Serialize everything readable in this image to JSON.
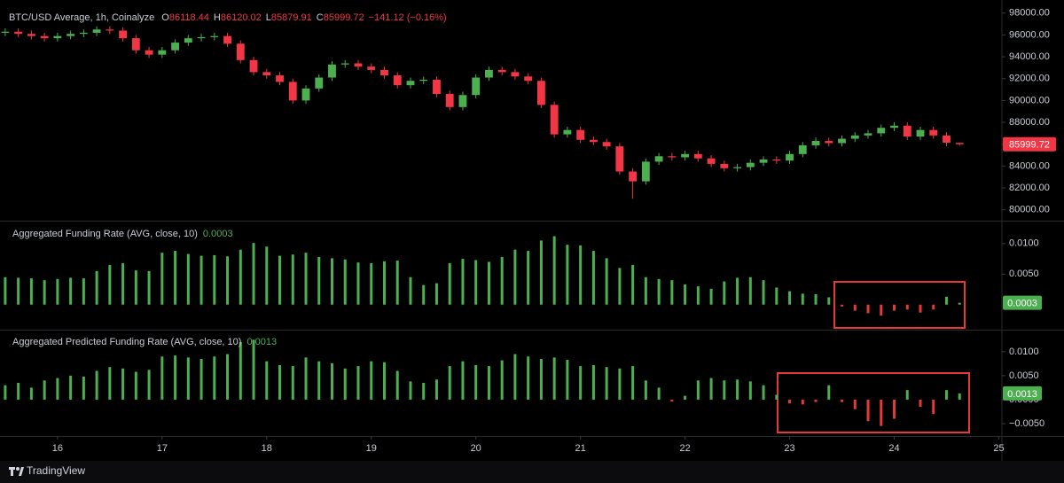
{
  "chart_data": [
    {
      "type": "candlestick",
      "title": "BTC/USD Average, 1h, Coinalyze",
      "ohlc_labels": [
        "O",
        "H",
        "L",
        "C"
      ],
      "change_label": "−141.12 (−0.16%)",
      "up_color": "#4caf50",
      "down_color": "#f23645",
      "grid": false,
      "xlim": [
        15.45,
        25.03
      ],
      "xticks": [
        16,
        17,
        18,
        19,
        20,
        21,
        22,
        23,
        24,
        25
      ],
      "x": [
        15.5,
        15.625,
        15.75,
        15.875,
        16,
        16.125,
        16.25,
        16.375,
        16.5,
        16.625,
        16.75,
        16.875,
        17,
        17.125,
        17.25,
        17.375,
        17.5,
        17.625,
        17.75,
        17.875,
        18,
        18.125,
        18.25,
        18.375,
        18.5,
        18.625,
        18.75,
        18.875,
        19,
        19.125,
        19.25,
        19.375,
        19.5,
        19.625,
        19.75,
        19.875,
        20,
        20.125,
        20.25,
        20.375,
        20.5,
        20.625,
        20.75,
        20.875,
        21,
        21.125,
        21.25,
        21.375,
        21.5,
        21.625,
        21.75,
        21.875,
        22,
        22.125,
        22.25,
        22.375,
        22.5,
        22.625,
        22.75,
        22.875,
        23,
        23.125,
        23.25,
        23.375,
        23.5,
        23.625,
        23.75,
        23.875,
        24,
        24.125,
        24.25,
        24.375,
        24.5,
        24.625
      ],
      "open": [
        96200,
        96300,
        96100,
        95900,
        95700,
        95900,
        96100,
        96200,
        96500,
        96400,
        95700,
        94600,
        94200,
        94600,
        95300,
        95700,
        95800,
        95900,
        95200,
        93700,
        92600,
        92300,
        91700,
        90000,
        91100,
        92100,
        93300,
        93400,
        93100,
        92800,
        92300,
        91400,
        91800,
        91900,
        90600,
        89400,
        90500,
        92100,
        92800,
        92600,
        92200,
        91800,
        89600,
        86900,
        87300,
        86400,
        86200,
        85800,
        83500,
        82600,
        84400,
        84900,
        84800,
        85100,
        84700,
        84200,
        83800,
        83900,
        84300,
        84600,
        84500,
        85100,
        85900,
        86300,
        86100,
        86500,
        86800,
        87000,
        87500,
        87700,
        86700,
        87300,
        86800,
        86118.44
      ],
      "high": [
        96600,
        96600,
        96400,
        96200,
        96200,
        96400,
        96500,
        96800,
        96800,
        96700,
        96000,
        94900,
        94900,
        95600,
        96000,
        96100,
        96200,
        96200,
        95500,
        94000,
        92900,
        92600,
        92000,
        91400,
        92400,
        93600,
        93700,
        93700,
        93400,
        93100,
        92600,
        92100,
        92200,
        92200,
        90900,
        90800,
        92400,
        93100,
        93100,
        92900,
        92500,
        92100,
        89900,
        87600,
        87600,
        86700,
        86500,
        86100,
        83800,
        84700,
        85200,
        85200,
        85400,
        85400,
        85000,
        84500,
        84200,
        84600,
        84900,
        84900,
        85400,
        86200,
        86600,
        86600,
        86800,
        87100,
        87300,
        87800,
        88000,
        88000,
        87600,
        87600,
        87100,
        86120.02
      ],
      "low": [
        95900,
        95800,
        95600,
        95400,
        95400,
        95600,
        95800,
        95900,
        96100,
        95400,
        94300,
        93900,
        93900,
        94300,
        95000,
        95400,
        95500,
        94900,
        93400,
        92300,
        92000,
        91400,
        89700,
        89700,
        90800,
        91800,
        93000,
        92800,
        92500,
        92000,
        91100,
        91100,
        91500,
        90300,
        89100,
        89100,
        90200,
        91800,
        92300,
        91900,
        91500,
        89300,
        86600,
        86600,
        86100,
        85900,
        85500,
        83200,
        81000,
        82300,
        84100,
        84500,
        84500,
        84400,
        83900,
        83500,
        83500,
        83600,
        84000,
        84200,
        84200,
        84800,
        85600,
        85800,
        85800,
        86200,
        86500,
        86700,
        87200,
        86400,
        86400,
        86500,
        85800,
        85879.91
      ],
      "close": [
        96300,
        96100,
        95900,
        95700,
        95900,
        96100,
        96200,
        96500,
        96400,
        95700,
        94600,
        94200,
        94600,
        95300,
        95700,
        95800,
        95900,
        95200,
        93700,
        92600,
        92300,
        91700,
        90000,
        91100,
        92100,
        93300,
        93400,
        93100,
        92800,
        92300,
        91400,
        91800,
        91900,
        90600,
        89400,
        90500,
        92100,
        92800,
        92600,
        92200,
        91800,
        89600,
        86900,
        87300,
        86400,
        86200,
        85800,
        83500,
        82600,
        84400,
        84900,
        84800,
        85100,
        84700,
        84200,
        83800,
        83900,
        84300,
        84600,
        84500,
        85100,
        85900,
        86300,
        86100,
        86500,
        86800,
        87000,
        87500,
        87700,
        86700,
        87300,
        86800,
        86140.84,
        85999.72
      ],
      "ylim": [
        79000,
        99200
      ],
      "yticks": [
        {
          "value": 80000,
          "label": "80000.00"
        },
        {
          "value": 82000,
          "label": "82000.00"
        },
        {
          "value": 84000,
          "label": "84000.00"
        },
        {
          "value": 86000,
          "label": "86000.00"
        },
        {
          "value": 88000,
          "label": "88000.00"
        },
        {
          "value": 90000,
          "label": "90000.00"
        },
        {
          "value": 92000,
          "label": "92000.00"
        },
        {
          "value": 94000,
          "label": "94000.00"
        },
        {
          "value": 96000,
          "label": "96000.00"
        },
        {
          "value": 98000,
          "label": "98000.00"
        }
      ]
    },
    {
      "type": "bar",
      "title": "Aggregated Funding Rate (AVG, close, 10)",
      "positive_color": "#4caf50",
      "negative_color": "#e53935",
      "grid": false,
      "values": [
        0.0045,
        0.0044,
        0.0043,
        0.004,
        0.0042,
        0.0044,
        0.0043,
        0.0055,
        0.0065,
        0.0068,
        0.0056,
        0.0055,
        0.0085,
        0.0088,
        0.0083,
        0.008,
        0.0081,
        0.0079,
        0.009,
        0.0101,
        0.0095,
        0.008,
        0.0082,
        0.0085,
        0.0078,
        0.0076,
        0.0074,
        0.0069,
        0.0068,
        0.0071,
        0.0072,
        0.0045,
        0.0032,
        0.0035,
        0.0068,
        0.0075,
        0.0073,
        0.007,
        0.0078,
        0.009,
        0.0088,
        0.0105,
        0.0112,
        0.0098,
        0.0097,
        0.0088,
        0.0076,
        0.006,
        0.0065,
        0.0045,
        0.0042,
        0.004,
        0.0033,
        0.003,
        0.0026,
        0.0038,
        0.0044,
        0.0045,
        0.004,
        0.0028,
        0.0022,
        0.0018,
        0.0017,
        0.0012,
        -0.0003,
        -0.001,
        -0.0014,
        -0.0018,
        -0.001,
        -0.0008,
        -0.0013,
        -0.0008,
        0.0013,
        0.0003
      ],
      "ylim": [
        -0.0041,
        0.0136
      ],
      "yticks": [
        {
          "value": 0.005,
          "label": "0.0050"
        },
        {
          "value": 0.01,
          "label": "0.0100"
        }
      ]
    },
    {
      "type": "bar",
      "title": "Aggregated Predicted Funding Rate (AVG, close, 10)",
      "positive_color": "#4caf50",
      "negative_color": "#e53935",
      "grid": false,
      "values": [
        0.003,
        0.0035,
        0.0025,
        0.004,
        0.0045,
        0.005,
        0.0048,
        0.006,
        0.0068,
        0.0065,
        0.0058,
        0.0062,
        0.009,
        0.0092,
        0.0088,
        0.0085,
        0.009,
        0.0095,
        0.012,
        0.0125,
        0.008,
        0.0072,
        0.007,
        0.0088,
        0.008,
        0.0076,
        0.0065,
        0.007,
        0.008,
        0.0078,
        0.006,
        0.0038,
        0.0035,
        0.0042,
        0.007,
        0.008,
        0.0072,
        0.007,
        0.0082,
        0.0095,
        0.009,
        0.0085,
        0.0088,
        0.0083,
        0.007,
        0.0072,
        0.0068,
        0.0065,
        0.007,
        0.004,
        0.0025,
        -0.0004,
        0.0008,
        0.004,
        0.0045,
        0.004,
        0.0042,
        0.0038,
        0.003,
        0.001,
        -0.0008,
        -0.001,
        -0.0005,
        0.003,
        -0.0005,
        -0.002,
        -0.0045,
        -0.0055,
        -0.004,
        0.002,
        -0.0015,
        -0.003,
        0.002,
        0.0013
      ],
      "ylim": [
        -0.0076,
        0.0146
      ],
      "yticks": [
        {
          "value": -0.005,
          "label": "−0.0050"
        },
        {
          "value": 0,
          "label": "0.0000"
        },
        {
          "value": 0.005,
          "label": "0.0050"
        },
        {
          "value": 0.01,
          "label": "0.0100"
        }
      ]
    }
  ],
  "watermark": "TradingView"
}
